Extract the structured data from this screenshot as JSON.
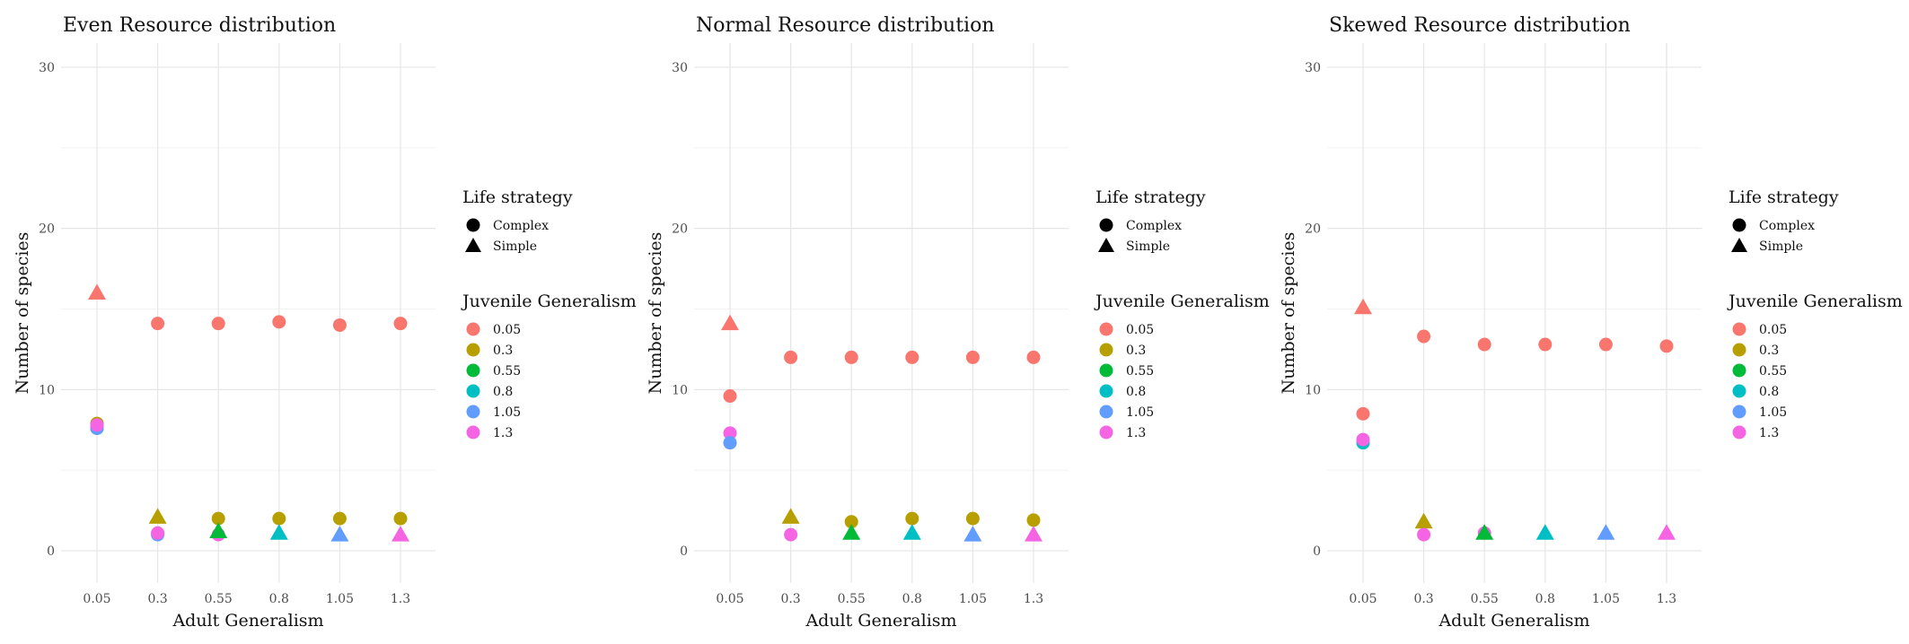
{
  "colors": {
    "0.05": "#F8766D",
    "0.3": "#B79F00",
    "0.55": "#00BA38",
    "0.8": "#00BFC4",
    "1.05": "#619CFF",
    "1.3": "#F564E3"
  },
  "legend": {
    "shape_title": "Life strategy",
    "shape_items": [
      {
        "label": "Complex",
        "shape": "circle"
      },
      {
        "label": "Simple",
        "shape": "triangle"
      }
    ],
    "color_title": "Juvenile Generalism",
    "color_items": [
      "0.05",
      "0.3",
      "0.55",
      "0.8",
      "1.05",
      "1.3"
    ]
  },
  "chart_data": [
    {
      "type": "scatter",
      "title": "Even Resource distribution",
      "xlabel": "Adult Generalism",
      "ylabel": "Number of species",
      "categories": [
        "0.05",
        "0.3",
        "0.55",
        "0.8",
        "1.05",
        "1.3"
      ],
      "y_ticks": [
        0,
        10,
        20,
        30
      ],
      "ylim": [
        -2,
        31.5
      ],
      "points": [
        {
          "x": "0.05",
          "juv": "0.05",
          "shape": "triangle",
          "y": 16
        },
        {
          "x": "0.05",
          "juv": "0.3",
          "shape": "circle",
          "y": 7.9
        },
        {
          "x": "0.05",
          "juv": "0.8",
          "shape": "circle",
          "y": 7.6
        },
        {
          "x": "0.05",
          "juv": "1.05",
          "shape": "circle",
          "y": 7.6
        },
        {
          "x": "0.05",
          "juv": "1.3",
          "shape": "circle",
          "y": 7.8
        },
        {
          "x": "0.3",
          "juv": "0.05",
          "shape": "circle",
          "y": 14.1
        },
        {
          "x": "0.3",
          "juv": "0.3",
          "shape": "triangle",
          "y": 2.1
        },
        {
          "x": "0.3",
          "juv": "1.05",
          "shape": "circle",
          "y": 1
        },
        {
          "x": "0.3",
          "juv": "1.3",
          "shape": "circle",
          "y": 1.1
        },
        {
          "x": "0.55",
          "juv": "0.05",
          "shape": "circle",
          "y": 14.1
        },
        {
          "x": "0.55",
          "juv": "0.3",
          "shape": "circle",
          "y": 2
        },
        {
          "x": "0.55",
          "juv": "1.3",
          "shape": "circle",
          "y": 1
        },
        {
          "x": "0.55",
          "juv": "0.55",
          "shape": "triangle",
          "y": 1.2
        },
        {
          "x": "0.8",
          "juv": "0.05",
          "shape": "circle",
          "y": 14.2
        },
        {
          "x": "0.8",
          "juv": "0.3",
          "shape": "circle",
          "y": 2
        },
        {
          "x": "0.8",
          "juv": "0.8",
          "shape": "triangle",
          "y": 1.1
        },
        {
          "x": "1.05",
          "juv": "0.05",
          "shape": "circle",
          "y": 14
        },
        {
          "x": "1.05",
          "juv": "0.3",
          "shape": "circle",
          "y": 2
        },
        {
          "x": "1.05",
          "juv": "1.05",
          "shape": "triangle",
          "y": 1
        },
        {
          "x": "1.3",
          "juv": "0.05",
          "shape": "circle",
          "y": 14.1
        },
        {
          "x": "1.3",
          "juv": "0.3",
          "shape": "circle",
          "y": 2
        },
        {
          "x": "1.3",
          "juv": "1.3",
          "shape": "triangle",
          "y": 1
        }
      ]
    },
    {
      "type": "scatter",
      "title": "Normal Resource distribution",
      "xlabel": "Adult Generalism",
      "ylabel": "Number of species",
      "categories": [
        "0.05",
        "0.3",
        "0.55",
        "0.8",
        "1.05",
        "1.3"
      ],
      "y_ticks": [
        0,
        10,
        20,
        30
      ],
      "ylim": [
        -2,
        31.5
      ],
      "points": [
        {
          "x": "0.05",
          "juv": "0.05",
          "shape": "triangle",
          "y": 14.1
        },
        {
          "x": "0.05",
          "juv": "0.05",
          "shape": "circle",
          "y": 9.6
        },
        {
          "x": "0.05",
          "juv": "1.3",
          "shape": "circle",
          "y": 7.3
        },
        {
          "x": "0.05",
          "juv": "1.05",
          "shape": "circle",
          "y": 6.7
        },
        {
          "x": "0.3",
          "juv": "0.05",
          "shape": "circle",
          "y": 12
        },
        {
          "x": "0.3",
          "juv": "0.3",
          "shape": "triangle",
          "y": 2.1
        },
        {
          "x": "0.3",
          "juv": "1.3",
          "shape": "circle",
          "y": 1
        },
        {
          "x": "0.55",
          "juv": "0.05",
          "shape": "circle",
          "y": 12
        },
        {
          "x": "0.55",
          "juv": "0.3",
          "shape": "circle",
          "y": 1.8
        },
        {
          "x": "0.55",
          "juv": "0.55",
          "shape": "triangle",
          "y": 1.1
        },
        {
          "x": "0.8",
          "juv": "0.05",
          "shape": "circle",
          "y": 12
        },
        {
          "x": "0.8",
          "juv": "0.3",
          "shape": "circle",
          "y": 2
        },
        {
          "x": "0.8",
          "juv": "0.8",
          "shape": "triangle",
          "y": 1.1
        },
        {
          "x": "1.05",
          "juv": "0.05",
          "shape": "circle",
          "y": 12
        },
        {
          "x": "1.05",
          "juv": "0.3",
          "shape": "circle",
          "y": 2
        },
        {
          "x": "1.05",
          "juv": "1.05",
          "shape": "triangle",
          "y": 1
        },
        {
          "x": "1.3",
          "juv": "0.05",
          "shape": "circle",
          "y": 12
        },
        {
          "x": "1.3",
          "juv": "0.3",
          "shape": "circle",
          "y": 1.9
        },
        {
          "x": "1.3",
          "juv": "1.3",
          "shape": "triangle",
          "y": 1
        }
      ]
    },
    {
      "type": "scatter",
      "title": "Skewed Resource distribution",
      "xlabel": "Adult Generalism",
      "ylabel": "Number of species",
      "categories": [
        "0.05",
        "0.3",
        "0.55",
        "0.8",
        "1.05",
        "1.3"
      ],
      "y_ticks": [
        0,
        10,
        20,
        30
      ],
      "ylim": [
        -2,
        31.5
      ],
      "points": [
        {
          "x": "0.05",
          "juv": "0.05",
          "shape": "triangle",
          "y": 15.1
        },
        {
          "x": "0.05",
          "juv": "0.05",
          "shape": "circle",
          "y": 8.5
        },
        {
          "x": "0.05",
          "juv": "0.8",
          "shape": "circle",
          "y": 6.7
        },
        {
          "x": "0.05",
          "juv": "1.3",
          "shape": "circle",
          "y": 6.9
        },
        {
          "x": "0.3",
          "juv": "0.05",
          "shape": "circle",
          "y": 13.3
        },
        {
          "x": "0.3",
          "juv": "0.3",
          "shape": "triangle",
          "y": 1.8
        },
        {
          "x": "0.3",
          "juv": "1.3",
          "shape": "circle",
          "y": 1
        },
        {
          "x": "0.55",
          "juv": "0.05",
          "shape": "circle",
          "y": 12.8
        },
        {
          "x": "0.55",
          "juv": "1.3",
          "shape": "circle",
          "y": 1.1
        },
        {
          "x": "0.55",
          "juv": "0.55",
          "shape": "triangle",
          "y": 1.1
        },
        {
          "x": "0.8",
          "juv": "0.05",
          "shape": "circle",
          "y": 12.8
        },
        {
          "x": "0.8",
          "juv": "0.8",
          "shape": "triangle",
          "y": 1.1
        },
        {
          "x": "1.05",
          "juv": "0.05",
          "shape": "circle",
          "y": 12.8
        },
        {
          "x": "1.05",
          "juv": "1.05",
          "shape": "triangle",
          "y": 1.1
        },
        {
          "x": "1.3",
          "juv": "0.05",
          "shape": "circle",
          "y": 12.7
        },
        {
          "x": "1.3",
          "juv": "1.3",
          "shape": "triangle",
          "y": 1.1
        }
      ]
    }
  ]
}
